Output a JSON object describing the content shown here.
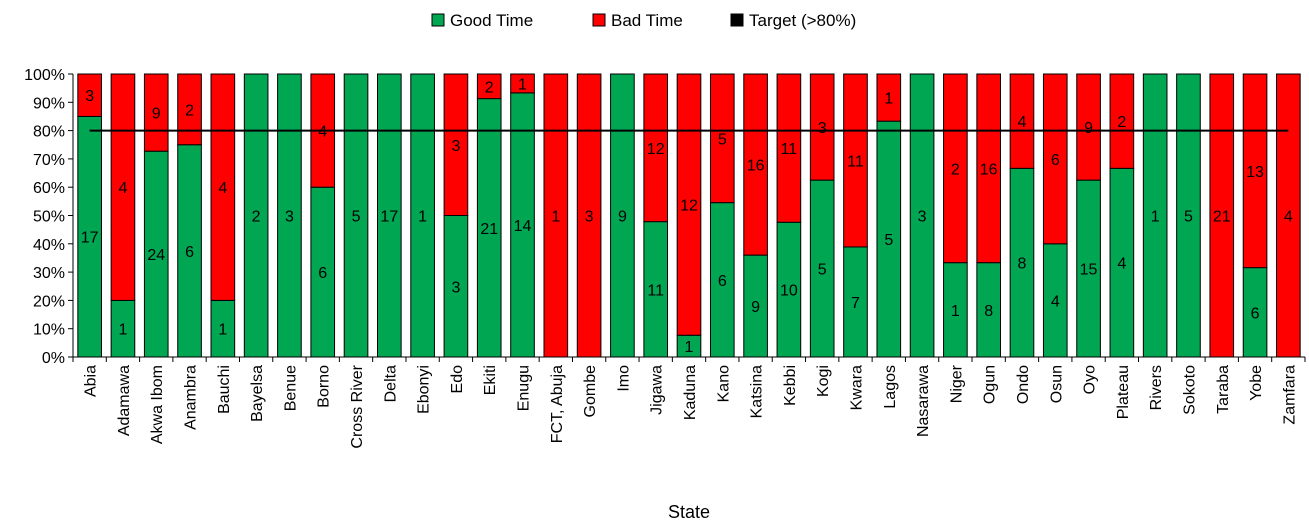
{
  "chart_data": {
    "type": "bar",
    "stacked": "percent",
    "xlabel": "State",
    "ylabel": "",
    "ylim": [
      0,
      100
    ],
    "yticks": [
      "0%",
      "10%",
      "20%",
      "30%",
      "40%",
      "50%",
      "60%",
      "70%",
      "80%",
      "90%",
      "100%"
    ],
    "legend_position": "top",
    "grid": false,
    "categories": [
      "Abia",
      "Adamawa",
      "Akwa Ibom",
      "Anambra",
      "Bauchi",
      "Bayelsa",
      "Benue",
      "Borno",
      "Cross River",
      "Delta",
      "Ebonyi",
      "Edo",
      "Ekiti",
      "Enugu",
      "FCT, Abuja",
      "Gombe",
      "Imo",
      "Jigawa",
      "Kaduna",
      "Kano",
      "Katsina",
      "Kebbi",
      "Kogi",
      "Kwara",
      "Lagos",
      "Nasarawa",
      "Niger",
      "Ogun",
      "Ondo",
      "Osun",
      "Oyo",
      "Plateau",
      "Rivers",
      "Sokoto",
      "Taraba",
      "Yobe",
      "Zamfara"
    ],
    "series": [
      {
        "name": "Good Time",
        "color": "#00A651",
        "values": [
          17,
          1,
          24,
          6,
          1,
          2,
          3,
          6,
          5,
          17,
          1,
          3,
          21,
          14,
          0,
          0,
          9,
          11,
          1,
          6,
          9,
          10,
          5,
          7,
          5,
          3,
          1,
          8,
          8,
          4,
          15,
          4,
          1,
          5,
          0,
          6,
          0
        ],
        "labels": [
          "17",
          "1",
          "24",
          "6",
          "1",
          "2",
          "3",
          "6",
          "5",
          "17",
          "1",
          "3",
          "21",
          "14",
          "",
          "",
          "9",
          "11",
          "1",
          "6",
          "9",
          "10",
          "5",
          "7",
          "5",
          "3",
          "1",
          "8",
          "8",
          "4",
          "15",
          "4",
          "1",
          "5",
          "",
          "6",
          ""
        ]
      },
      {
        "name": "Bad Time",
        "color": "#FF0000",
        "values": [
          3,
          4,
          9,
          2,
          4,
          0,
          0,
          4,
          0,
          0,
          0,
          3,
          2,
          1,
          1,
          3,
          0,
          12,
          12,
          5,
          16,
          11,
          3,
          11,
          1,
          0,
          2,
          16,
          4,
          6,
          9,
          2,
          0,
          0,
          21,
          13,
          4
        ],
        "labels": [
          "3",
          "4",
          "9",
          "2",
          "4",
          "",
          "",
          "4",
          "",
          "",
          "",
          "3",
          "2",
          "1",
          "1",
          "3",
          "",
          "12",
          "12",
          "5",
          "16",
          "11",
          "3",
          "11",
          "1",
          "",
          "2",
          "16",
          "4",
          "6",
          "9",
          "2",
          "",
          "",
          "21",
          "13",
          "4"
        ]
      }
    ],
    "target": {
      "name": "Target (>80%)",
      "value": 80,
      "color": "#000000"
    }
  }
}
